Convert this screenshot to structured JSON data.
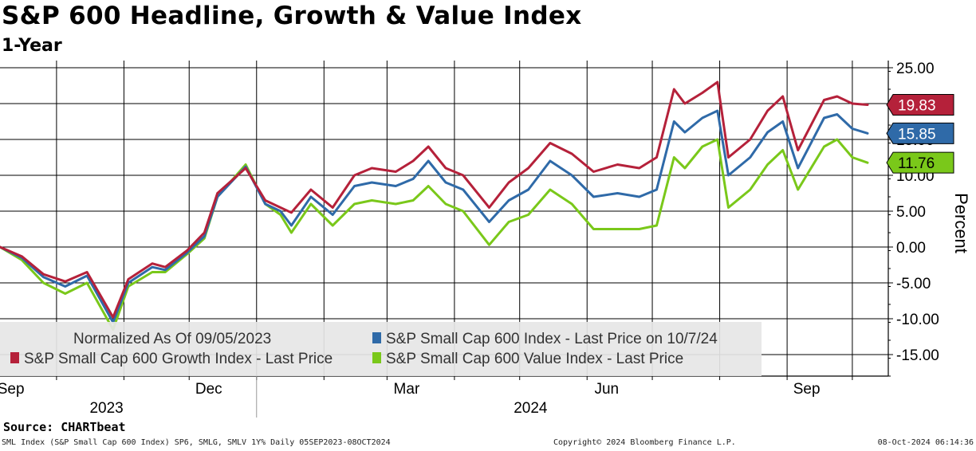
{
  "header": {
    "title": "S&P 600 Headline, Growth & Value Index",
    "subtitle": "1-Year"
  },
  "footer": {
    "source": "Source: CHARTbeat",
    "ticker_info": "SML Index (S&P Small Cap 600 Index) SP6, SMLG, SMLV 1Y%  Daily 05SEP2023-08OCT2024",
    "copyright": "Copyright© 2024 Bloomberg Finance L.P.",
    "timestamp": "08-Oct-2024 06:14:36"
  },
  "chart_data": {
    "type": "line",
    "title": "S&P 600 Headline, Growth & Value Index",
    "subtitle": "1-Year",
    "ylabel": "Percent",
    "ylim": [
      -18,
      26
    ],
    "yticks": [
      -15,
      -10,
      -5,
      0,
      5,
      10,
      15,
      20,
      25
    ],
    "ytick_labels": [
      "-15.00",
      "-10.00",
      "-5.00",
      "0.00",
      "5.00",
      "10.00",
      "15.00",
      "20.00",
      "25.00"
    ],
    "x_range": [
      "2023-09-05",
      "2024-10-08"
    ],
    "x_month_ticks": [
      "2023-09-01",
      "2023-10-01",
      "2023-11-01",
      "2023-12-01",
      "2024-01-01",
      "2024-02-01",
      "2024-03-01",
      "2024-04-01",
      "2024-05-01",
      "2024-06-01",
      "2024-07-01",
      "2024-08-01",
      "2024-09-01",
      "2024-10-01"
    ],
    "x_labels": [
      {
        "date": "2023-09-10",
        "label": "Sep"
      },
      {
        "date": "2023-12-10",
        "label": "Dec"
      },
      {
        "date": "2024-03-10",
        "label": "Mar"
      },
      {
        "date": "2024-06-10",
        "label": "Jun"
      },
      {
        "date": "2024-09-10",
        "label": "Sep"
      }
    ],
    "year_labels": [
      {
        "date": "2023-10-24",
        "label": "2023"
      },
      {
        "date": "2024-05-06",
        "label": "2024"
      }
    ],
    "year_divider": "2024-01-01",
    "legend": {
      "placement": "bottom-left",
      "note": "Normalized As Of 09/05/2023",
      "entries": [
        {
          "label": "S&P Small Cap 600 Index - Last Price on 10/7/24",
          "color": "#2f6aa8"
        },
        {
          "label": "S&P Small Cap 600 Growth Index - Last Price",
          "color": "#b5213a"
        },
        {
          "label": "S&P Small Cap 600 Value Index - Last Price",
          "color": "#7ac81a"
        }
      ]
    },
    "series": [
      {
        "name": "S&P Small Cap 600 Growth Index - Last Price",
        "color": "#b5213a",
        "last_value": 19.83,
        "last_label": "19.83",
        "points": [
          [
            "2023-09-05",
            0
          ],
          [
            "2023-09-15",
            -1.3
          ],
          [
            "2023-09-25",
            -3.8
          ],
          [
            "2023-10-05",
            -4.8
          ],
          [
            "2023-10-15",
            -3.5
          ],
          [
            "2023-10-27",
            -9.8
          ],
          [
            "2023-11-03",
            -4.5
          ],
          [
            "2023-11-14",
            -2.3
          ],
          [
            "2023-11-20",
            -2.8
          ],
          [
            "2023-11-30",
            -0.5
          ],
          [
            "2023-12-08",
            2.0
          ],
          [
            "2023-12-14",
            7.5
          ],
          [
            "2023-12-27",
            11.0
          ],
          [
            "2024-01-05",
            6.5
          ],
          [
            "2024-01-12",
            5.5
          ],
          [
            "2024-01-17",
            4.8
          ],
          [
            "2024-01-26",
            8.0
          ],
          [
            "2024-02-05",
            5.5
          ],
          [
            "2024-02-15",
            10.0
          ],
          [
            "2024-02-23",
            11.0
          ],
          [
            "2024-03-05",
            10.5
          ],
          [
            "2024-03-13",
            12.0
          ],
          [
            "2024-03-20",
            14.0
          ],
          [
            "2024-03-28",
            11.0
          ],
          [
            "2024-04-05",
            10.0
          ],
          [
            "2024-04-17",
            5.5
          ],
          [
            "2024-04-26",
            9.0
          ],
          [
            "2024-05-05",
            11.0
          ],
          [
            "2024-05-15",
            14.5
          ],
          [
            "2024-05-25",
            13.0
          ],
          [
            "2024-06-04",
            10.5
          ],
          [
            "2024-06-15",
            11.5
          ],
          [
            "2024-06-25",
            11.0
          ],
          [
            "2024-07-03",
            12.5
          ],
          [
            "2024-07-11",
            22.0
          ],
          [
            "2024-07-16",
            20.0
          ],
          [
            "2024-07-24",
            21.5
          ],
          [
            "2024-07-31",
            23.0
          ],
          [
            "2024-08-05",
            12.5
          ],
          [
            "2024-08-15",
            15.0
          ],
          [
            "2024-08-23",
            19.0
          ],
          [
            "2024-08-30",
            21.0
          ],
          [
            "2024-09-06",
            13.5
          ],
          [
            "2024-09-18",
            20.5
          ],
          [
            "2024-09-24",
            21.0
          ],
          [
            "2024-10-01",
            20.0
          ],
          [
            "2024-10-08",
            19.83
          ]
        ]
      },
      {
        "name": "S&P Small Cap 600 Index - Last Price on 10/7/24",
        "color": "#2f6aa8",
        "last_value": 15.85,
        "last_label": "15.85",
        "points": [
          [
            "2023-09-05",
            0
          ],
          [
            "2023-09-15",
            -1.5
          ],
          [
            "2023-09-25",
            -4.2
          ],
          [
            "2023-10-05",
            -5.5
          ],
          [
            "2023-10-15",
            -4.0
          ],
          [
            "2023-10-27",
            -10.5
          ],
          [
            "2023-11-03",
            -5.0
          ],
          [
            "2023-11-14",
            -2.8
          ],
          [
            "2023-11-20",
            -3.2
          ],
          [
            "2023-11-30",
            -0.8
          ],
          [
            "2023-12-08",
            1.5
          ],
          [
            "2023-12-14",
            7.0
          ],
          [
            "2023-12-27",
            11.2
          ],
          [
            "2024-01-05",
            6.0
          ],
          [
            "2024-01-12",
            5.0
          ],
          [
            "2024-01-17",
            3.0
          ],
          [
            "2024-01-26",
            7.0
          ],
          [
            "2024-02-05",
            4.5
          ],
          [
            "2024-02-15",
            8.5
          ],
          [
            "2024-02-23",
            9.0
          ],
          [
            "2024-03-05",
            8.5
          ],
          [
            "2024-03-13",
            9.5
          ],
          [
            "2024-03-20",
            12.0
          ],
          [
            "2024-03-28",
            9.0
          ],
          [
            "2024-04-05",
            8.0
          ],
          [
            "2024-04-17",
            3.5
          ],
          [
            "2024-04-26",
            6.5
          ],
          [
            "2024-05-05",
            8.0
          ],
          [
            "2024-05-15",
            12.0
          ],
          [
            "2024-05-25",
            10.0
          ],
          [
            "2024-06-04",
            7.0
          ],
          [
            "2024-06-15",
            7.5
          ],
          [
            "2024-06-25",
            7.0
          ],
          [
            "2024-07-03",
            8.0
          ],
          [
            "2024-07-11",
            17.5
          ],
          [
            "2024-07-16",
            16.0
          ],
          [
            "2024-07-24",
            18.0
          ],
          [
            "2024-07-31",
            19.0
          ],
          [
            "2024-08-05",
            10.0
          ],
          [
            "2024-08-15",
            12.5
          ],
          [
            "2024-08-23",
            16.0
          ],
          [
            "2024-08-30",
            17.5
          ],
          [
            "2024-09-06",
            11.0
          ],
          [
            "2024-09-18",
            18.0
          ],
          [
            "2024-09-24",
            18.5
          ],
          [
            "2024-10-01",
            16.5
          ],
          [
            "2024-10-08",
            15.85
          ]
        ]
      },
      {
        "name": "S&P Small Cap 600 Value Index - Last Price",
        "color": "#7ac81a",
        "last_value": 11.76,
        "last_label": "11.76",
        "points": [
          [
            "2023-09-05",
            0
          ],
          [
            "2023-09-15",
            -1.8
          ],
          [
            "2023-09-25",
            -5.0
          ],
          [
            "2023-10-05",
            -6.5
          ],
          [
            "2023-10-15",
            -5.0
          ],
          [
            "2023-10-27",
            -11.5
          ],
          [
            "2023-11-03",
            -5.5
          ],
          [
            "2023-11-14",
            -3.5
          ],
          [
            "2023-11-20",
            -3.5
          ],
          [
            "2023-11-30",
            -1.0
          ],
          [
            "2023-12-08",
            1.2
          ],
          [
            "2023-12-14",
            7.0
          ],
          [
            "2023-12-27",
            11.5
          ],
          [
            "2024-01-05",
            6.0
          ],
          [
            "2024-01-12",
            4.5
          ],
          [
            "2024-01-17",
            2.0
          ],
          [
            "2024-01-26",
            6.0
          ],
          [
            "2024-02-05",
            3.0
          ],
          [
            "2024-02-15",
            6.0
          ],
          [
            "2024-02-23",
            6.5
          ],
          [
            "2024-03-05",
            6.0
          ],
          [
            "2024-03-13",
            6.5
          ],
          [
            "2024-03-20",
            8.5
          ],
          [
            "2024-03-28",
            6.0
          ],
          [
            "2024-04-05",
            5.0
          ],
          [
            "2024-04-17",
            0.3
          ],
          [
            "2024-04-26",
            3.5
          ],
          [
            "2024-05-05",
            4.5
          ],
          [
            "2024-05-15",
            8.0
          ],
          [
            "2024-05-25",
            6.0
          ],
          [
            "2024-06-04",
            2.5
          ],
          [
            "2024-06-15",
            2.5
          ],
          [
            "2024-06-25",
            2.5
          ],
          [
            "2024-07-03",
            3.0
          ],
          [
            "2024-07-11",
            12.5
          ],
          [
            "2024-07-16",
            11.0
          ],
          [
            "2024-07-24",
            14.0
          ],
          [
            "2024-07-31",
            15.0
          ],
          [
            "2024-08-05",
            5.5
          ],
          [
            "2024-08-15",
            8.0
          ],
          [
            "2024-08-23",
            11.5
          ],
          [
            "2024-08-30",
            13.5
          ],
          [
            "2024-09-06",
            8.0
          ],
          [
            "2024-09-18",
            14.0
          ],
          [
            "2024-09-24",
            15.0
          ],
          [
            "2024-10-01",
            12.5
          ],
          [
            "2024-10-08",
            11.76
          ]
        ]
      }
    ]
  }
}
